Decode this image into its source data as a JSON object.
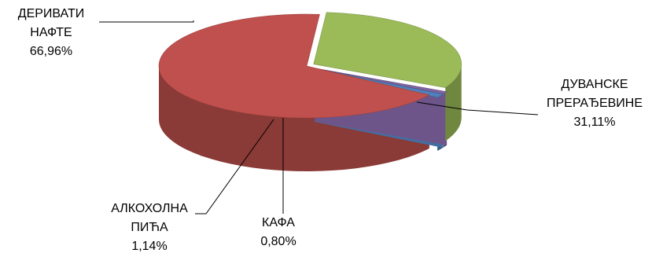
{
  "chart_data": {
    "type": "pie",
    "title": "",
    "slices": [
      {
        "name_lines": [
          "ДЕРИВАТИ",
          "НАФТЕ"
        ],
        "value": 66.96,
        "value_label": "66,96%",
        "color": "#c0504d"
      },
      {
        "name_lines": [
          "ДУВАНСКЕ",
          "ПРЕРАЂЕВИНЕ"
        ],
        "value": 31.11,
        "value_label": "31,11%",
        "color": "#9bbb59"
      },
      {
        "name_lines": [
          "КАФА"
        ],
        "value": 0.8,
        "value_label": "0,80%",
        "color": "#8064a2"
      },
      {
        "name_lines": [
          "АЛКОХОЛНА",
          "ПИЋА"
        ],
        "value": 1.14,
        "value_label": "1,14%",
        "color": "#4f81bd"
      }
    ],
    "legend": "none",
    "style": "3d-exploded"
  }
}
